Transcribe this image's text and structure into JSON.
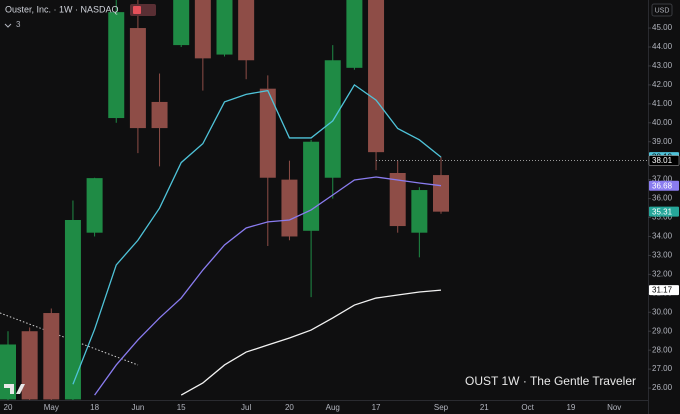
{
  "chart_data": {
    "type": "candlestick",
    "title": "Ouster, Inc. · 1W · NASDAQ",
    "indicator_count": 3,
    "currency": "USD",
    "watermark": "OUST 1W · The Gentle Traveler",
    "categories": [
      "20",
      null,
      "May",
      null,
      "18",
      null,
      "Jun",
      null,
      "15",
      null,
      null,
      "Jul",
      null,
      "20",
      null,
      "Aug",
      null,
      "17",
      null,
      null,
      "Sep",
      null,
      "21",
      null,
      "Oct",
      null,
      "19",
      null,
      "Nov"
    ],
    "open": [
      25.4,
      29.0,
      29.96,
      25.4,
      34.2,
      40.25,
      45.0,
      41.1,
      44.1,
      46.48,
      43.6,
      46.48,
      41.8,
      37.0,
      34.3,
      37.1,
      42.9,
      46.48,
      37.35,
      34.2,
      37.24,
      null,
      null,
      null,
      null,
      null,
      null,
      null,
      null
    ],
    "high": [
      29.0,
      29.2,
      30.2,
      35.9,
      37.1,
      46.48,
      46.48,
      42.6,
      46.48,
      46.48,
      46.48,
      46.48,
      42.5,
      38.0,
      39.1,
      44.1,
      46.48,
      46.48,
      38.0,
      36.6,
      38.2,
      null,
      null,
      null,
      null,
      null,
      null,
      null,
      null
    ],
    "low": [
      25.37,
      25.37,
      25.37,
      25.37,
      34.0,
      40.0,
      38.4,
      37.7,
      44.0,
      41.7,
      43.5,
      42.3,
      33.5,
      33.8,
      30.8,
      36.0,
      42.8,
      37.5,
      34.2,
      32.9,
      35.2,
      null,
      null,
      null,
      null,
      null,
      null,
      null,
      null
    ],
    "close": [
      28.3,
      25.4,
      25.4,
      34.87,
      37.08,
      45.84,
      39.72,
      39.72,
      46.48,
      43.4,
      46.48,
      43.3,
      37.1,
      34.0,
      39.0,
      43.3,
      46.48,
      38.45,
      34.55,
      36.45,
      35.31,
      null,
      null,
      null,
      null,
      null,
      null,
      null,
      null
    ],
    "up_color": "#1f8b45",
    "down_color": "#8e4d47",
    "lines": [
      {
        "color": "#4fc3d9",
        "values": [
          null,
          null,
          null,
          26.2,
          29.1,
          32.5,
          33.8,
          35.5,
          37.9,
          38.9,
          41.1,
          41.5,
          41.7,
          39.2,
          39.2,
          40.1,
          42.0,
          41.2,
          39.7,
          39.1,
          38.19,
          null,
          null,
          null,
          null,
          null,
          null,
          null,
          null
        ]
      },
      {
        "color": "#8a7cf0",
        "values": [
          null,
          null,
          null,
          null,
          25.63,
          27.22,
          28.54,
          29.7,
          30.75,
          32.23,
          33.55,
          34.45,
          34.77,
          34.87,
          35.4,
          36.19,
          36.98,
          37.14,
          36.98,
          36.82,
          36.68,
          null,
          null,
          null,
          null,
          null,
          null,
          null,
          null
        ]
      },
      {
        "color": "#f2f2f2",
        "values": [
          null,
          null,
          null,
          null,
          null,
          null,
          null,
          null,
          25.63,
          26.27,
          27.22,
          27.9,
          28.27,
          28.64,
          29.06,
          29.7,
          30.38,
          30.75,
          30.91,
          31.07,
          31.17,
          null,
          null,
          null,
          null,
          null,
          null,
          null,
          null
        ]
      }
    ],
    "price_labels": [
      {
        "value": 38.19,
        "color": "#4fc3d9"
      },
      {
        "value": 38.01,
        "color": "#000000"
      },
      {
        "value": 36.68,
        "color": "#8a7cf0"
      },
      {
        "value": 35.31,
        "color": "#26a69a"
      },
      {
        "value": 31.17,
        "color": "#ffffff"
      }
    ],
    "ylim": [
      25.37,
      46.48
    ],
    "yticks": [
      {
        "value": 26,
        "label": "26.00"
      },
      {
        "value": 27,
        "label": "27.00"
      },
      {
        "value": 28,
        "label": "28.00"
      },
      {
        "value": 29,
        "label": "29.00"
      },
      {
        "value": 30,
        "label": "30.00"
      },
      {
        "value": 31,
        "label": "31.00"
      },
      {
        "value": 32,
        "label": "32.00"
      },
      {
        "value": 33,
        "label": "33.00"
      },
      {
        "value": 34,
        "label": "34.00"
      },
      {
        "value": 35,
        "label": "35.00"
      },
      {
        "value": 36,
        "label": "36.00"
      },
      {
        "value": 37,
        "label": "37.00"
      },
      {
        "value": 38,
        "label": "38.00"
      },
      {
        "value": 39,
        "label": "39.00"
      },
      {
        "value": 40,
        "label": "40.00"
      },
      {
        "value": 41,
        "label": "41.00"
      },
      {
        "value": 42,
        "label": "42.00"
      },
      {
        "value": 43,
        "label": "43.00"
      },
      {
        "value": 44,
        "label": "44.00"
      },
      {
        "value": 45,
        "label": "45.00"
      }
    ]
  }
}
